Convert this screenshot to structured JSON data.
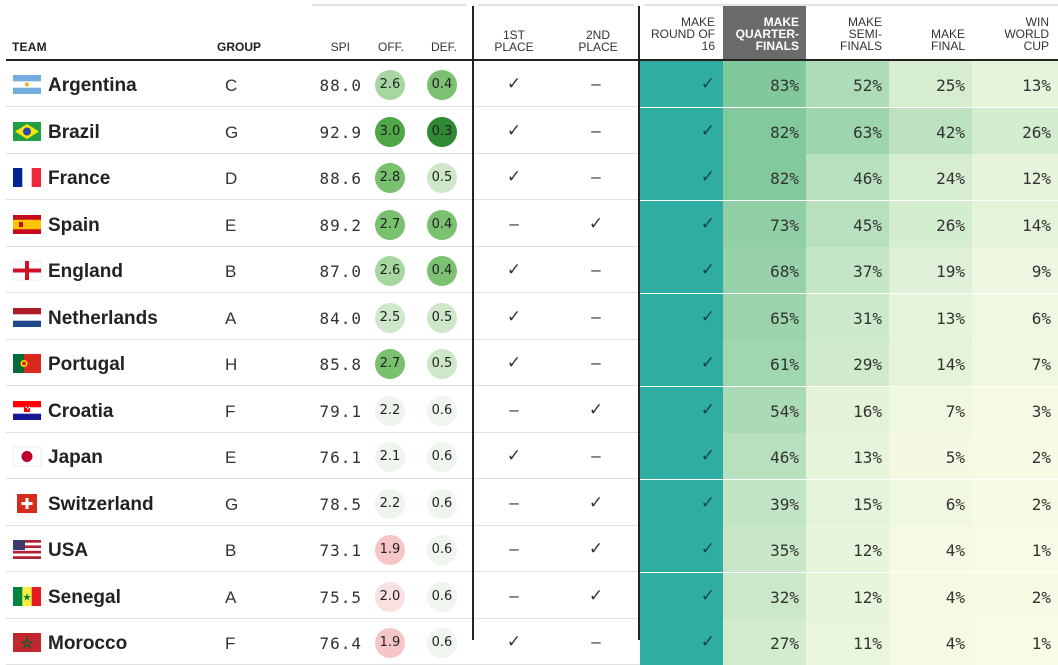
{
  "headers": {
    "team": "TEAM",
    "group": "GROUP",
    "spi": "SPI",
    "off": "OFF.",
    "def": "DEF.",
    "first": [
      "1ST",
      "PLACE"
    ],
    "second": [
      "2ND",
      "PLACE"
    ],
    "r16": [
      "MAKE",
      "ROUND OF",
      "16"
    ],
    "qf": [
      "MAKE",
      "QUARTER-",
      "FINALS"
    ],
    "sf": [
      "MAKE",
      "SEMI-",
      "FINALS"
    ],
    "final": [
      "MAKE",
      "FINAL"
    ],
    "win": [
      "WIN",
      "WORLD",
      "CUP"
    ]
  },
  "symbols": {
    "check": "✓",
    "dash": "–"
  },
  "colors": {
    "r16_bg": "#2fada2",
    "qf_header_bg": "#6b6b6b",
    "off_scale": [
      "#f6c5c5",
      "#f9e1e1",
      "#edf5ec",
      "#cfe8cb",
      "#a7d7a0",
      "#79c06f",
      "#4fa74a"
    ],
    "def_scale": [
      "#2f8a33",
      "#4aa24a",
      "#7cc072",
      "#cde7c8",
      "#eef6ed"
    ]
  },
  "chart_data": {
    "type": "table",
    "columns": [
      "TEAM",
      "GROUP",
      "SPI",
      "OFF.",
      "DEF.",
      "1ST PLACE",
      "2ND PLACE",
      "MAKE ROUND OF 16",
      "MAKE QUARTER-FINALS",
      "MAKE SEMI-FINALS",
      "MAKE FINAL",
      "WIN WORLD CUP"
    ],
    "rows": [
      {
        "team": "Argentina",
        "flag": "argentina",
        "group": "C",
        "spi": "88.0",
        "off": "2.6",
        "def": "0.4",
        "first": "✓",
        "second": "–",
        "r16": "✓",
        "qf": "83%",
        "sf": "52%",
        "final": "25%",
        "win": "13%"
      },
      {
        "team": "Brazil",
        "flag": "brazil",
        "group": "G",
        "spi": "92.9",
        "off": "3.0",
        "def": "0.3",
        "first": "✓",
        "second": "–",
        "r16": "✓",
        "qf": "82%",
        "sf": "63%",
        "final": "42%",
        "win": "26%"
      },
      {
        "team": "France",
        "flag": "france",
        "group": "D",
        "spi": "88.6",
        "off": "2.8",
        "def": "0.5",
        "first": "✓",
        "second": "–",
        "r16": "✓",
        "qf": "82%",
        "sf": "46%",
        "final": "24%",
        "win": "12%"
      },
      {
        "team": "Spain",
        "flag": "spain",
        "group": "E",
        "spi": "89.2",
        "off": "2.7",
        "def": "0.4",
        "first": "–",
        "second": "✓",
        "r16": "✓",
        "qf": "73%",
        "sf": "45%",
        "final": "26%",
        "win": "14%"
      },
      {
        "team": "England",
        "flag": "england",
        "group": "B",
        "spi": "87.0",
        "off": "2.6",
        "def": "0.4",
        "first": "✓",
        "second": "–",
        "r16": "✓",
        "qf": "68%",
        "sf": "37%",
        "final": "19%",
        "win": "9%"
      },
      {
        "team": "Netherlands",
        "flag": "netherlands",
        "group": "A",
        "spi": "84.0",
        "off": "2.5",
        "def": "0.5",
        "first": "✓",
        "second": "–",
        "r16": "✓",
        "qf": "65%",
        "sf": "31%",
        "final": "13%",
        "win": "6%"
      },
      {
        "team": "Portugal",
        "flag": "portugal",
        "group": "H",
        "spi": "85.8",
        "off": "2.7",
        "def": "0.5",
        "first": "✓",
        "second": "–",
        "r16": "✓",
        "qf": "61%",
        "sf": "29%",
        "final": "14%",
        "win": "7%"
      },
      {
        "team": "Croatia",
        "flag": "croatia",
        "group": "F",
        "spi": "79.1",
        "off": "2.2",
        "def": "0.6",
        "first": "–",
        "second": "✓",
        "r16": "✓",
        "qf": "54%",
        "sf": "16%",
        "final": "7%",
        "win": "3%"
      },
      {
        "team": "Japan",
        "flag": "japan",
        "group": "E",
        "spi": "76.1",
        "off": "2.1",
        "def": "0.6",
        "first": "✓",
        "second": "–",
        "r16": "✓",
        "qf": "46%",
        "sf": "13%",
        "final": "5%",
        "win": "2%"
      },
      {
        "team": "Switzerland",
        "flag": "switzerland",
        "group": "G",
        "spi": "78.5",
        "off": "2.2",
        "def": "0.6",
        "first": "–",
        "second": "✓",
        "r16": "✓",
        "qf": "39%",
        "sf": "15%",
        "final": "6%",
        "win": "2%"
      },
      {
        "team": "USA",
        "flag": "usa",
        "group": "B",
        "spi": "73.1",
        "off": "1.9",
        "def": "0.6",
        "first": "–",
        "second": "✓",
        "r16": "✓",
        "qf": "35%",
        "sf": "12%",
        "final": "4%",
        "win": "1%"
      },
      {
        "team": "Senegal",
        "flag": "senegal",
        "group": "A",
        "spi": "75.5",
        "off": "2.0",
        "def": "0.6",
        "first": "–",
        "second": "✓",
        "r16": "✓",
        "qf": "32%",
        "sf": "12%",
        "final": "4%",
        "win": "2%"
      },
      {
        "team": "Morocco",
        "flag": "morocco",
        "group": "F",
        "spi": "76.4",
        "off": "1.9",
        "def": "0.6",
        "first": "✓",
        "second": "–",
        "r16": "✓",
        "qf": "27%",
        "sf": "11%",
        "final": "4%",
        "win": "1%"
      }
    ]
  }
}
